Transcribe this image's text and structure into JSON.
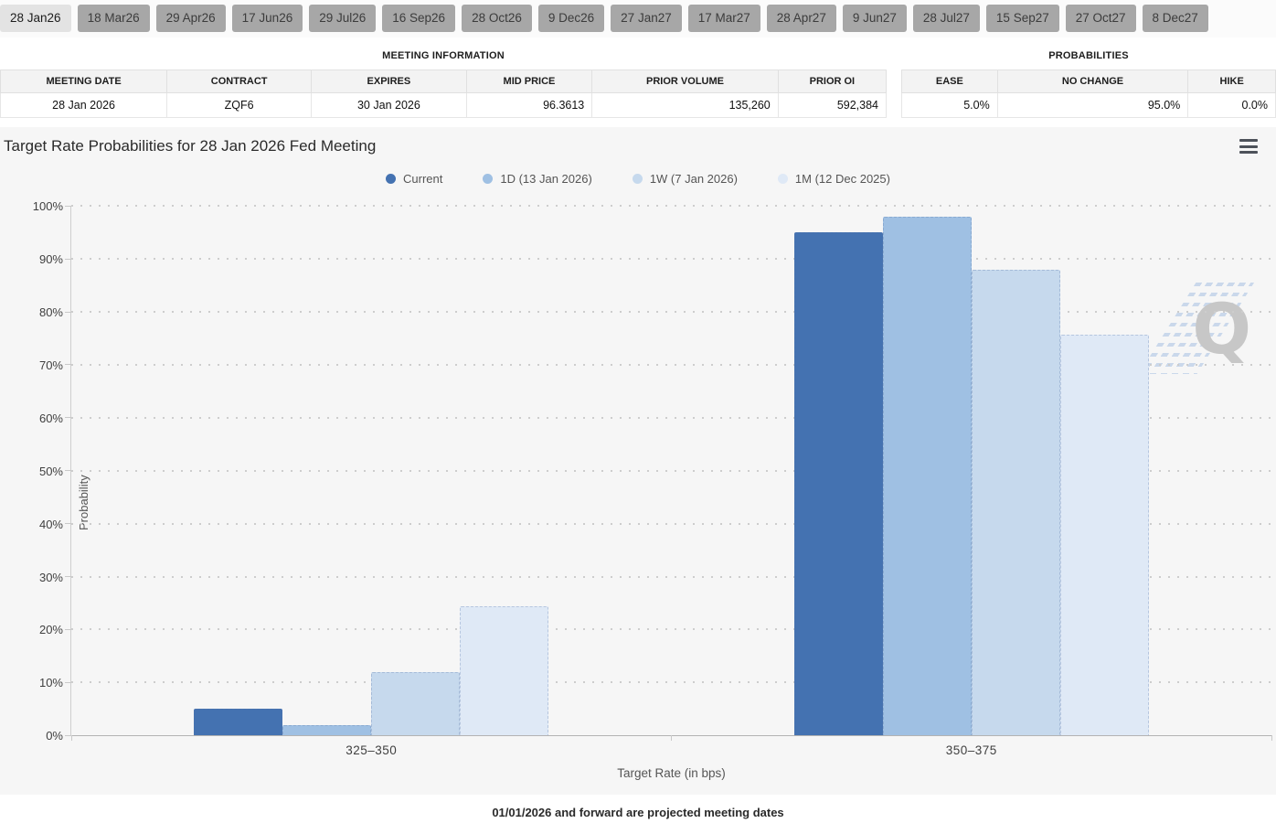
{
  "tabs": {
    "items": [
      {
        "label": "28 Jan26",
        "selected": true
      },
      {
        "label": "18 Mar26",
        "selected": false
      },
      {
        "label": "29 Apr26",
        "selected": false
      },
      {
        "label": "17 Jun26",
        "selected": false
      },
      {
        "label": "29 Jul26",
        "selected": false
      },
      {
        "label": "16 Sep26",
        "selected": false
      },
      {
        "label": "28 Oct26",
        "selected": false
      },
      {
        "label": "9 Dec26",
        "selected": false
      },
      {
        "label": "27 Jan27",
        "selected": false
      },
      {
        "label": "17 Mar27",
        "selected": false
      },
      {
        "label": "28 Apr27",
        "selected": false
      },
      {
        "label": "9 Jun27",
        "selected": false
      },
      {
        "label": "28 Jul27",
        "selected": false
      },
      {
        "label": "15 Sep27",
        "selected": false
      },
      {
        "label": "27 Oct27",
        "selected": false
      },
      {
        "label": "8 Dec27",
        "selected": false
      }
    ]
  },
  "meeting_info": {
    "title": "MEETING INFORMATION",
    "columns": [
      "MEETING DATE",
      "CONTRACT",
      "EXPIRES",
      "MID PRICE",
      "PRIOR VOLUME",
      "PRIOR OI"
    ],
    "row": [
      "28 Jan 2026",
      "ZQF6",
      "30 Jan 2026",
      "96.3613",
      "135,260",
      "592,384"
    ]
  },
  "probabilities": {
    "title": "PROBABILITIES",
    "columns": [
      "EASE",
      "NO CHANGE",
      "HIKE"
    ],
    "row": [
      "5.0%",
      "95.0%",
      "0.0%"
    ]
  },
  "chart_data": {
    "type": "bar",
    "title": "Target Rate Probabilities for 28 Jan 2026 Fed Meeting",
    "categories": [
      "325–350",
      "350–375"
    ],
    "series": [
      {
        "name": "Current",
        "color": "#4472b1",
        "values": [
          5.0,
          95.0
        ]
      },
      {
        "name": "1D (13 Jan 2026)",
        "color": "#9fc0e3",
        "values": [
          2.0,
          98.0
        ]
      },
      {
        "name": "1W (7 Jan 2026)",
        "color": "#c6d9ed",
        "values": [
          12.0,
          88.0
        ]
      },
      {
        "name": "1M (12 Dec 2025)",
        "color": "#dfe9f6",
        "values": [
          24.4,
          75.6
        ]
      }
    ],
    "xlabel": "Target Rate (in bps)",
    "ylabel": "Probability",
    "ylim": [
      0,
      100
    ],
    "yticks": [
      "0%",
      "10%",
      "20%",
      "30%",
      "40%",
      "50%",
      "60%",
      "70%",
      "80%",
      "90%",
      "100%"
    ],
    "legend_position": "top",
    "grid": "dotted-horizontal"
  },
  "watermark": {
    "letter": "Q"
  },
  "footer": {
    "note": "01/01/2026 and forward are projected meeting dates"
  }
}
